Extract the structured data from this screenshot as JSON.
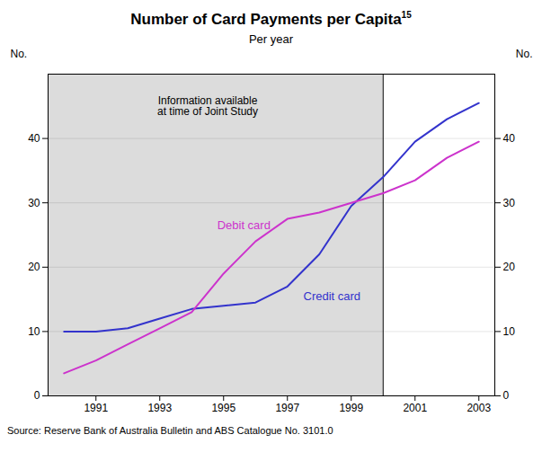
{
  "chart_data": {
    "type": "line",
    "title": "Number of Card Payments per Capita",
    "title_superscript": "15",
    "subtitle": "Per year",
    "y_label": "No.",
    "y2_label": "No.",
    "source": "Source: Reserve Bank of Australia Bulletin and ABS Catalogue No. 3101.0",
    "x": [
      1990,
      1991,
      1992,
      1993,
      1994,
      1995,
      1996,
      1997,
      1998,
      1999,
      2000,
      2001,
      2002,
      2003
    ],
    "series": [
      {
        "name": "Credit card",
        "color": "#3333cc",
        "values": [
          10.0,
          10.0,
          10.5,
          12.0,
          13.5,
          14.0,
          14.5,
          17.0,
          22.0,
          29.5,
          34.0,
          39.5,
          43.0,
          45.5
        ],
        "label_x": 1997.5,
        "label_y": 15.5
      },
      {
        "name": "Debit card",
        "color": "#cc33cc",
        "values": [
          3.5,
          5.5,
          8.0,
          10.5,
          13.0,
          19.0,
          24.0,
          27.5,
          28.5,
          30.0,
          31.5,
          33.5,
          37.0,
          39.5
        ],
        "label_x": 1994.8,
        "label_y": 26.5
      }
    ],
    "annotations": [
      {
        "text": "Information available\nat time of Joint Study",
        "x": 1994.5,
        "y": 46.5
      }
    ],
    "shaded_region": {
      "from": 1989.5,
      "to": 2000,
      "color": "#dcdcdc"
    },
    "divider_x": 2000,
    "xlim": [
      1989.5,
      2003.5
    ],
    "xticks": [
      1991,
      1993,
      1995,
      1997,
      1999,
      2001,
      2003
    ],
    "ylim": [
      0,
      50
    ],
    "yticks": [
      0,
      10,
      20,
      30,
      40
    ],
    "y2lim": [
      0,
      50
    ],
    "y2ticks": [
      0,
      10,
      20,
      30,
      40
    ],
    "grid": true
  }
}
